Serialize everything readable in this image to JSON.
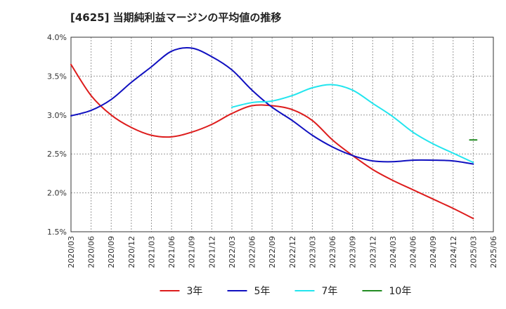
{
  "chart_data": {
    "type": "line",
    "title": "[4625]  当期純利益マージンの平均値の推移",
    "x": [
      "2020/03",
      "2020/06",
      "2020/09",
      "2020/12",
      "2021/03",
      "2021/06",
      "2021/09",
      "2021/12",
      "2022/03",
      "2022/06",
      "2022/09",
      "2022/12",
      "2023/03",
      "2023/06",
      "2023/09",
      "2023/12",
      "2024/03",
      "2024/06",
      "2024/09",
      "2024/12",
      "2025/03",
      "2025/06"
    ],
    "ylim": [
      1.5,
      4.0
    ],
    "yticks": [
      "1.5%",
      "2.0%",
      "2.5%",
      "3.0%",
      "3.5%",
      "4.0%"
    ],
    "ytick_values": [
      1.5,
      2.0,
      2.5,
      3.0,
      3.5,
      4.0
    ],
    "grid": true,
    "legend_position": "bottom",
    "series": [
      {
        "name": "3年",
        "color": "#dd1c1c",
        "values": [
          3.65,
          3.25,
          3.0,
          2.84,
          2.74,
          2.72,
          2.78,
          2.88,
          3.02,
          3.12,
          3.12,
          3.07,
          2.93,
          2.68,
          2.48,
          2.3,
          2.16,
          2.04,
          1.92,
          1.8,
          1.67,
          null
        ]
      },
      {
        "name": "5年",
        "color": "#1010c0",
        "values": [
          2.99,
          3.06,
          3.2,
          3.42,
          3.62,
          3.82,
          3.86,
          3.75,
          3.58,
          3.32,
          3.1,
          2.93,
          2.74,
          2.59,
          2.48,
          2.41,
          2.4,
          2.42,
          2.42,
          2.41,
          2.37,
          null
        ]
      },
      {
        "name": "7年",
        "color": "#22e5ee",
        "values": [
          null,
          null,
          null,
          null,
          null,
          null,
          null,
          null,
          3.1,
          3.16,
          3.18,
          3.25,
          3.35,
          3.39,
          3.32,
          3.15,
          2.98,
          2.78,
          2.63,
          2.51,
          2.39,
          null
        ]
      },
      {
        "name": "10年",
        "color": "#228b22",
        "values": [
          null,
          null,
          null,
          null,
          null,
          null,
          null,
          null,
          null,
          null,
          null,
          null,
          null,
          null,
          null,
          null,
          null,
          null,
          null,
          null,
          2.68,
          null
        ]
      }
    ]
  }
}
